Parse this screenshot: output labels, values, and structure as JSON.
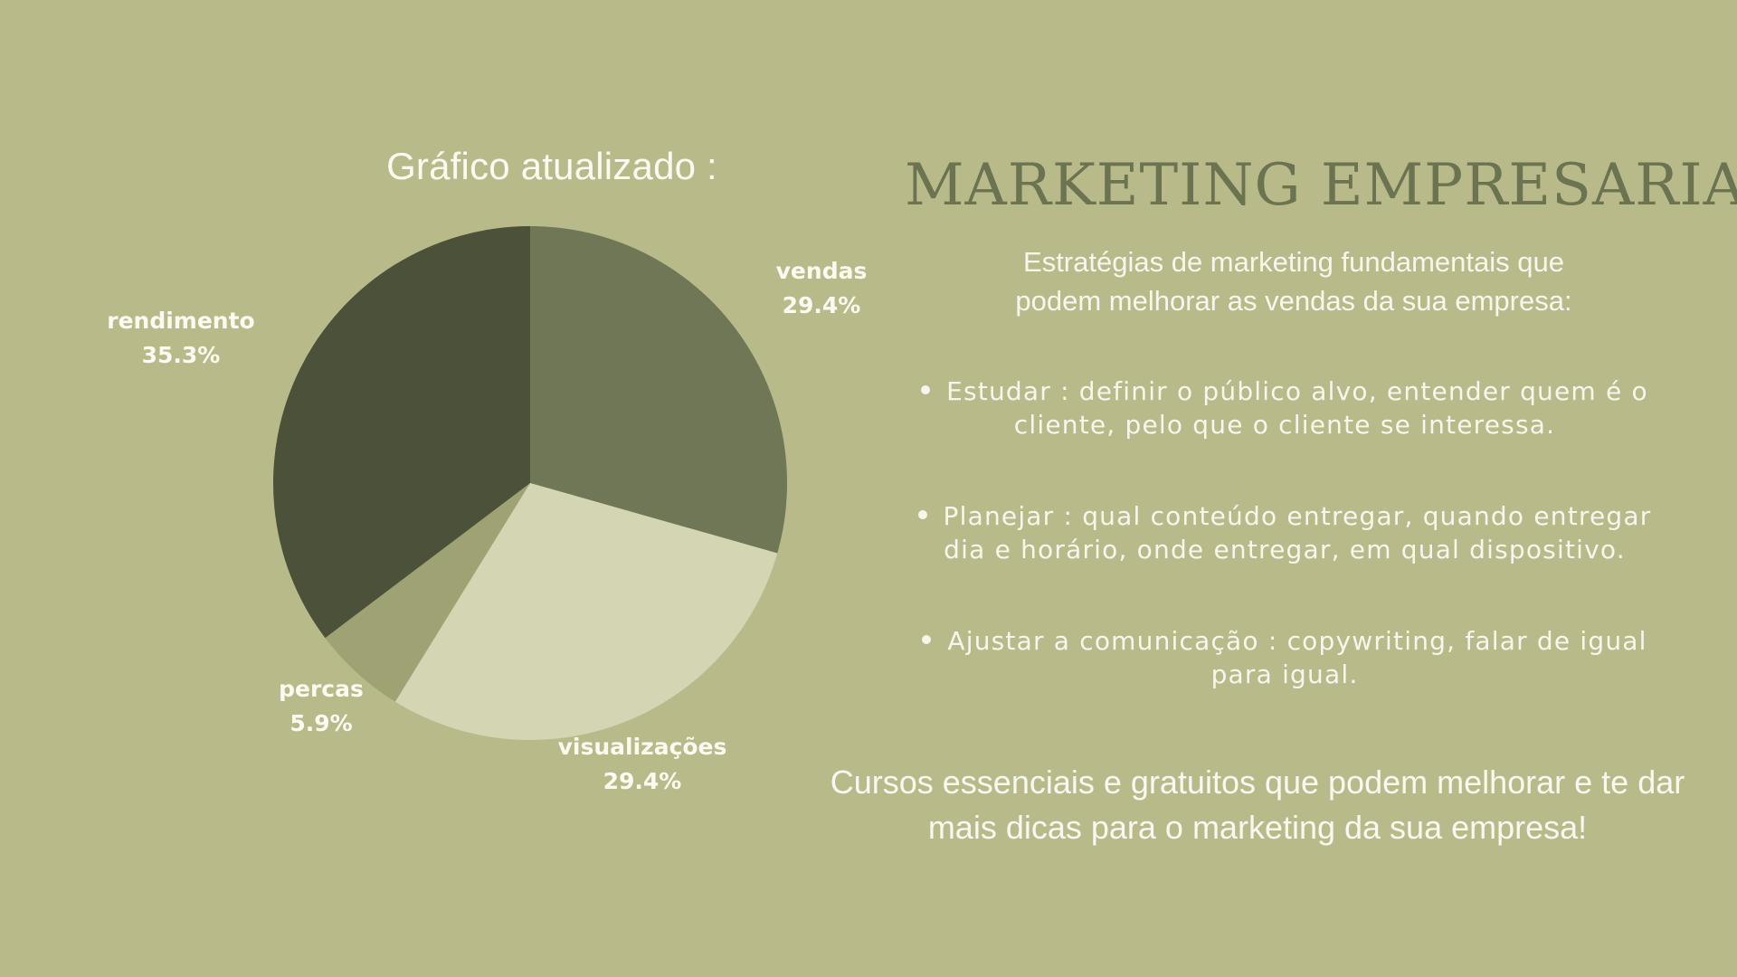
{
  "chart_data": {
    "type": "pie",
    "title": "Gráfico atualizado :",
    "slices": [
      {
        "label": "vendas",
        "value": 29.4,
        "value_label": "29.4%",
        "color": "#6f7757"
      },
      {
        "label": "visualizações",
        "value": 29.4,
        "value_label": "29.4%",
        "color": "#d3d5b3"
      },
      {
        "label": "percas",
        "value": 5.9,
        "value_label": "5.9%",
        "color": "#9fa272"
      },
      {
        "label": "rendimento",
        "value": 35.3,
        "value_label": "35.3%",
        "color": "#4c513a"
      }
    ],
    "start": "12 o'clock",
    "direction": "clockwise"
  },
  "main": {
    "title": "MARKETING EMPRESARIAL",
    "intro_lines": [
      "Estratégias de marketing fundamentais que",
      "podem melhorar as vendas da sua empresa:"
    ],
    "steps": [
      {
        "lines": [
          "Estudar : definir o público alvo, entender quem é o",
          "cliente, pelo que o cliente se interessa."
        ]
      },
      {
        "lines": [
          "Planejar : qual conteúdo entregar, quando entregar",
          "dia e horário, onde entregar, em qual dispositivo."
        ]
      },
      {
        "lines": [
          "Ajustar a comunicação : copywriting, falar de igual",
          "para igual."
        ]
      }
    ],
    "courses_lines": [
      "Cursos essenciais e gratuitos que podem melhorar e te dar",
      "mais dicas para o marketing da sua empresa!"
    ]
  },
  "colors": {
    "background": "#b8bb89",
    "title": "#6b7350",
    "text": "#f7f6ee"
  }
}
